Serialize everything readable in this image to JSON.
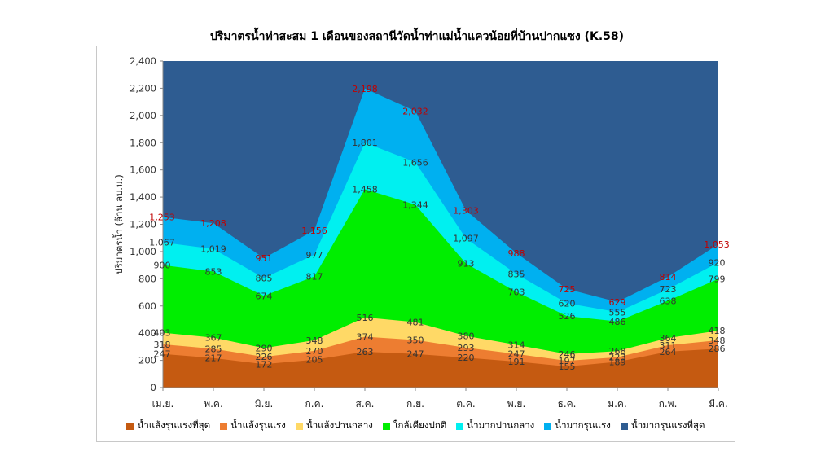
{
  "chart_data": {
    "type": "area",
    "stacked": true,
    "title": "ปริมาตรน้ำท่าสะสม 1 เดือนของสถานีวัดน้ำท่าแม่น้ำแควน้อยที่บ้านปากแซง (K.58)",
    "ylabel": "ปริมาตรน้ำ (ล้าน ลบ.ม.)",
    "xlabel": "",
    "ylim": [
      0,
      2400
    ],
    "yticks": [
      0,
      200,
      400,
      600,
      800,
      1000,
      1200,
      1400,
      1600,
      1800,
      2000,
      2200,
      2400
    ],
    "ytick_labels": [
      "0",
      "200",
      "400",
      "600",
      "800",
      "1,000",
      "1,200",
      "1,400",
      "1,600",
      "1,800",
      "2,000",
      "2,200",
      "2,400"
    ],
    "categories": [
      "เม.ย.",
      "พ.ค.",
      "มิ.ย.",
      "ก.ค.",
      "ส.ค.",
      "ก.ย.",
      "ต.ค.",
      "พ.ย.",
      "ธ.ค.",
      "ม.ค.",
      "ก.พ.",
      "มี.ค."
    ],
    "grid": false,
    "legend_position": "bottom",
    "series": [
      {
        "name": "น้ำแล้งรุนแรงที่สุด",
        "color": "#C55A11",
        "values": [
          247,
          217,
          172,
          205,
          263,
          247,
          220,
          191,
          155,
          189,
          264,
          286
        ],
        "labels": [
          "247",
          "217",
          "172",
          "205",
          "263",
          "247",
          "220",
          "191",
          "155",
          "189",
          "264",
          "286"
        ],
        "label_color": "#333333"
      },
      {
        "name": "น้ำแล้งรุนแรง",
        "color": "#ED7D31",
        "values": [
          318,
          285,
          226,
          270,
          374,
          350,
          293,
          247,
          197,
          223,
          311,
          348
        ],
        "labels": [
          "318",
          "285",
          "226",
          "270",
          "374",
          "350",
          "293",
          "247",
          "197",
          "223",
          "311",
          "348"
        ],
        "label_color": "#333333"
      },
      {
        "name": "น้ำแล้งปานกลาง",
        "color": "#FFD966",
        "values": [
          403,
          367,
          290,
          348,
          516,
          481,
          380,
          314,
          246,
          268,
          364,
          418
        ],
        "labels": [
          "403",
          "367",
          "290",
          "348",
          "516",
          "481",
          "380",
          "314",
          "246",
          "268",
          "364",
          "418"
        ],
        "label_color": "#333333"
      },
      {
        "name": "ใกล้เคียงปกติ",
        "color": "#00EE00",
        "values": [
          900,
          853,
          674,
          817,
          1458,
          1344,
          913,
          703,
          526,
          486,
          638,
          799
        ],
        "labels": [
          "900",
          "853",
          "674",
          "817",
          "1,458",
          "1,344",
          "913",
          "703",
          "526",
          "486",
          "638",
          "799"
        ],
        "label_color": "#333333"
      },
      {
        "name": "น้ำมากปานกลาง",
        "color": "#00F0F0",
        "values": [
          1067,
          1019,
          805,
          977,
          1801,
          1656,
          1097,
          835,
          620,
          555,
          723,
          920
        ],
        "labels": [
          "1,067",
          "1,019",
          "805",
          "977",
          "1,801",
          "1,656",
          "1,097",
          "835",
          "620",
          "555",
          "723",
          "920"
        ],
        "label_color": "#333333"
      },
      {
        "name": "น้ำมากรุนแรง",
        "color": "#00B0F0",
        "values": [
          1253,
          1208,
          951,
          1156,
          2198,
          2032,
          1303,
          988,
          725,
          629,
          814,
          1053
        ],
        "labels": [
          "1,253",
          "1,208",
          "951",
          "1,156",
          "2,198",
          "2,032",
          "1,303",
          "988",
          "725",
          "629",
          "814",
          "1,053"
        ],
        "label_color": "#C00000"
      },
      {
        "name": "น้ำมากรุนแรงที่สุด",
        "color": "#2E5C91",
        "values": [
          2400,
          2400,
          2400,
          2400,
          2400,
          2400,
          2400,
          2400,
          2400,
          2400,
          2400,
          2400
        ],
        "labels": [],
        "label_color": "#333333"
      }
    ]
  }
}
